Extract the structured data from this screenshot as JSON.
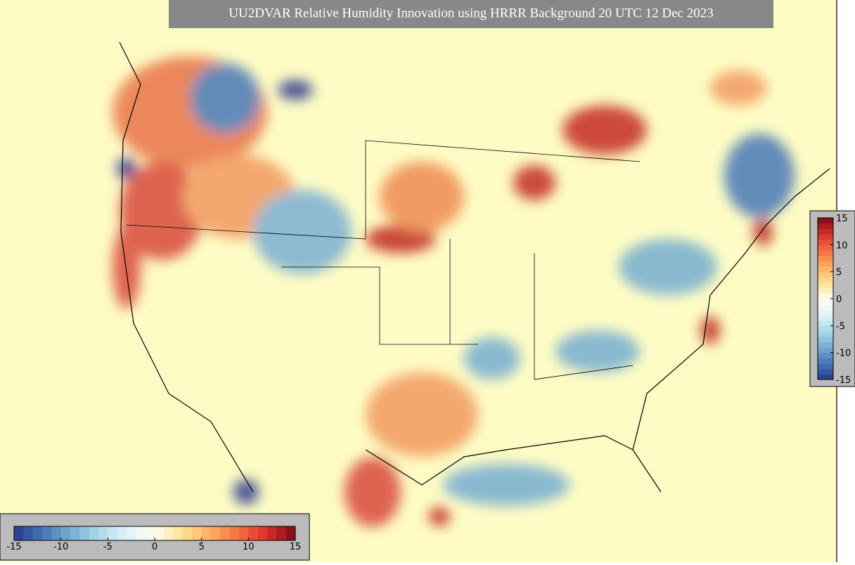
{
  "title": "UU2DVAR Relative Humidity Innovation using HRRR Background 20 UTC 12 Dec 2023",
  "colorbar": {
    "lim": [
      -15,
      15
    ],
    "ticks": [
      -15,
      -10,
      -5,
      0,
      5,
      10,
      15
    ],
    "colors": [
      "#2b3990",
      "#4575b4",
      "#74add1",
      "#abd9e9",
      "#e0f3f8",
      "#fdfdf0",
      "#fee090",
      "#fdae61",
      "#f46d43",
      "#d73027",
      "#7f0a14"
    ]
  }
}
